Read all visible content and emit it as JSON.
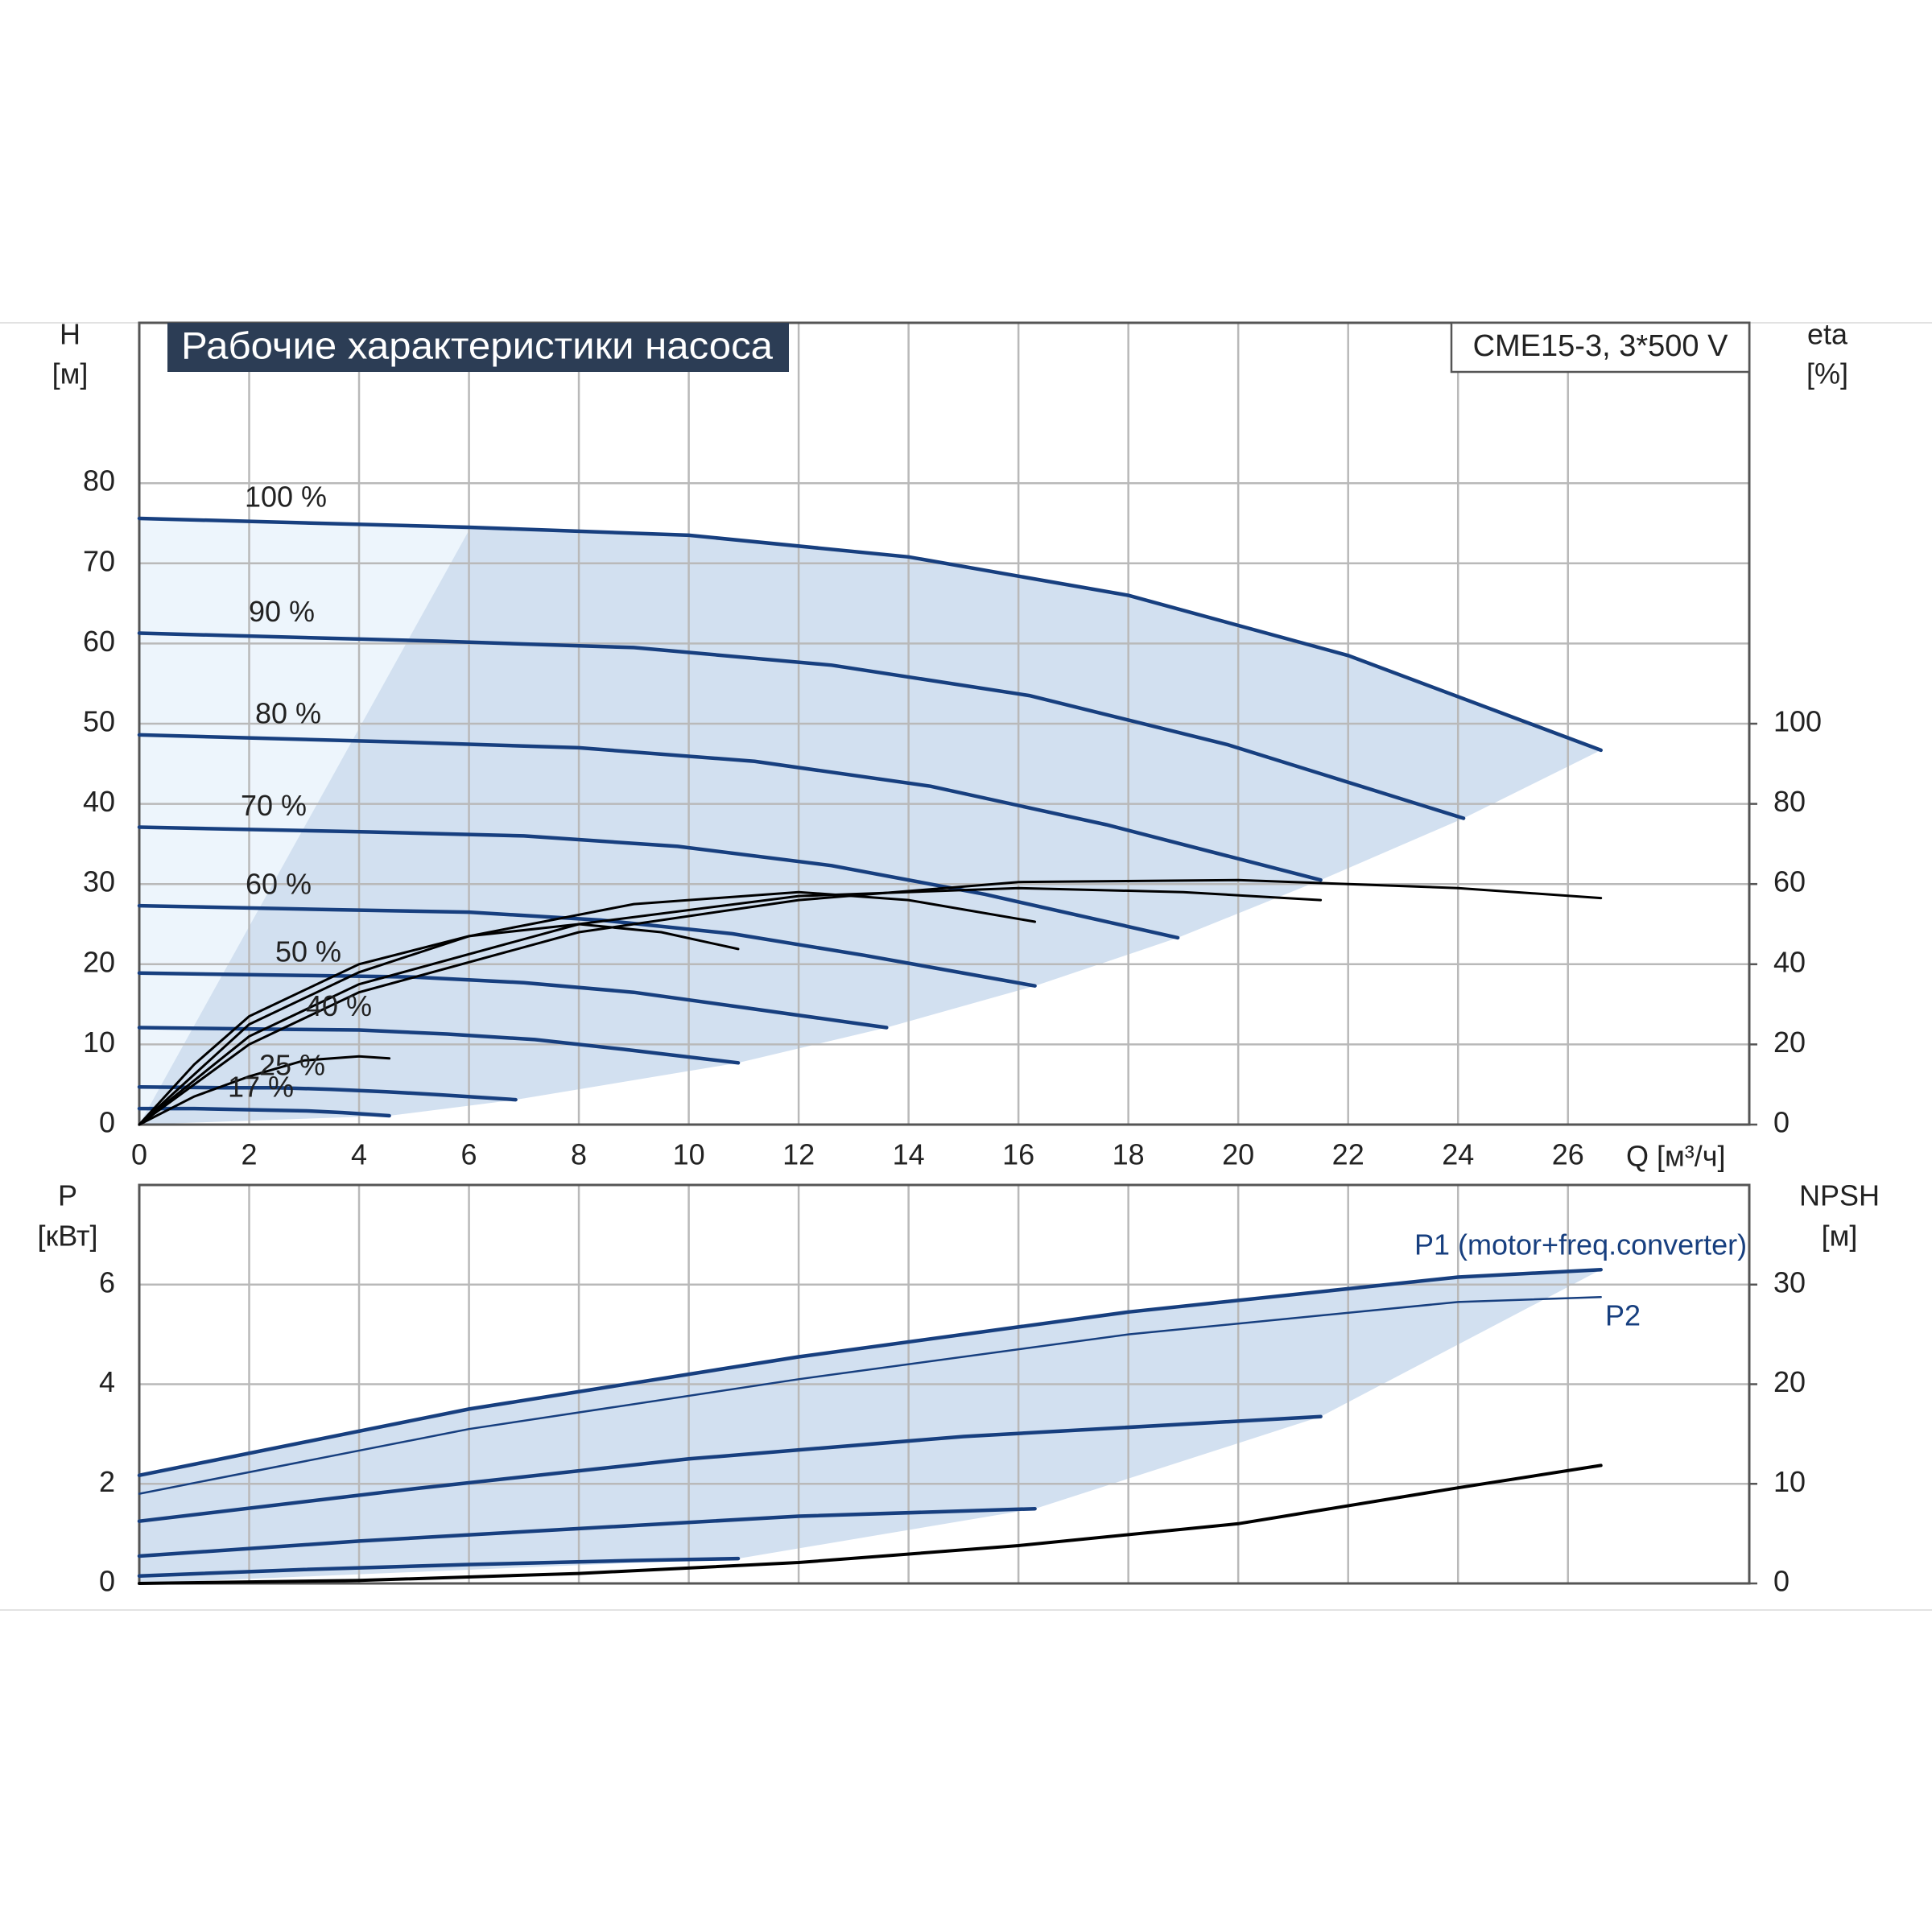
{
  "chart_data": [
    {
      "type": "line",
      "title": "Рабочие характеристики насоса",
      "annotation": "CME15-3, 3*500 V",
      "xlabel": "Q [м³/ч]",
      "ylabel": "H",
      "ylabel_unit": "[м]",
      "y2label": "eta",
      "y2label_unit": "[%]",
      "xlim": [
        0,
        29.3
      ],
      "xticks": [
        0,
        2,
        4,
        6,
        8,
        10,
        12,
        14,
        16,
        18,
        20,
        22,
        24,
        26
      ],
      "ylim": [
        0,
        100
      ],
      "yticks": [
        0,
        10,
        20,
        30,
        40,
        50,
        60,
        70,
        80
      ],
      "y2lim": [
        0,
        200
      ],
      "y2ticks": [
        0,
        20,
        40,
        60,
        80,
        100
      ],
      "grid": true,
      "series": [
        {
          "name": "100 %",
          "color": "#173f7f",
          "x": [
            0,
            6,
            10,
            14,
            18,
            22,
            26.6
          ],
          "values": [
            75.6,
            74.5,
            73.5,
            70.8,
            66,
            58.5,
            46.7
          ]
        },
        {
          "name": "90 %",
          "color": "#173f7f",
          "x": [
            0,
            5.4,
            9,
            12.6,
            16.2,
            19.8,
            24.1
          ],
          "values": [
            61.3,
            60.3,
            59.5,
            57.3,
            53.5,
            47.4,
            38.2
          ]
        },
        {
          "name": "80 %",
          "color": "#173f7f",
          "x": [
            0,
            4.8,
            8,
            11.2,
            14.4,
            17.6,
            21.5
          ],
          "values": [
            48.6,
            47.7,
            47,
            45.3,
            42.2,
            37.4,
            30.5
          ]
        },
        {
          "name": "70 %",
          "color": "#173f7f",
          "x": [
            0,
            4.2,
            7,
            9.8,
            12.6,
            15.4,
            18.9
          ],
          "values": [
            37.1,
            36.5,
            36,
            34.7,
            32.3,
            28.7,
            23.3
          ]
        },
        {
          "name": "60 %",
          "color": "#173f7f",
          "x": [
            0,
            3.6,
            6,
            8.4,
            10.8,
            13.2,
            16.3
          ],
          "values": [
            27.3,
            26.8,
            26.5,
            25.5,
            23.8,
            21.1,
            17.3
          ]
        },
        {
          "name": "50 %",
          "color": "#173f7f",
          "x": [
            0,
            3,
            5,
            7,
            9,
            11,
            13.6
          ],
          "values": [
            18.9,
            18.6,
            18.4,
            17.7,
            16.5,
            14.6,
            12.1
          ]
        },
        {
          "name": "40 %",
          "color": "#173f7f",
          "x": [
            0,
            2.4,
            4,
            5.6,
            7.2,
            8.8,
            10.9
          ],
          "values": [
            12.1,
            11.9,
            11.8,
            11.3,
            10.6,
            9.4,
            7.7
          ]
        },
        {
          "name": "25 %",
          "color": "#173f7f",
          "x": [
            0,
            1.5,
            2.5,
            3.5,
            4.5,
            5.5,
            6.85
          ],
          "values": [
            4.7,
            4.6,
            4.6,
            4.4,
            4.1,
            3.7,
            3.1
          ]
        },
        {
          "name": "17 %",
          "color": "#173f7f",
          "x": [
            0,
            1,
            1.7,
            2.4,
            3.1,
            3.7,
            4.55
          ],
          "values": [
            2.0,
            2.0,
            1.9,
            1.8,
            1.7,
            1.5,
            1.1
          ]
        },
        {
          "color": "#000000",
          "axis": "y2",
          "x": [
            0,
            2,
            4,
            8,
            12,
            16,
            20,
            24,
            26.6
          ],
          "values": [
            0,
            20,
            33,
            48,
            56,
            60.5,
            61,
            59,
            56.5
          ]
        },
        {
          "color": "#000000",
          "axis": "y2",
          "x": [
            0,
            2,
            4,
            8,
            12,
            16,
            19,
            21.5
          ],
          "values": [
            0,
            22,
            35,
            50,
            57,
            59,
            58,
            56
          ]
        },
        {
          "color": "#000000",
          "axis": "y2",
          "x": [
            0,
            2,
            4,
            6,
            9,
            12,
            14,
            16.3
          ],
          "values": [
            0,
            25,
            38,
            47,
            55,
            58,
            56,
            50.6
          ]
        },
        {
          "color": "#000000",
          "axis": "y2",
          "x": [
            0,
            1,
            2,
            4,
            6,
            8,
            9.5,
            10.9
          ],
          "values": [
            0,
            15,
            27,
            40,
            47,
            50,
            48,
            43.8
          ]
        },
        {
          "color": "#000000",
          "axis": "y2",
          "x": [
            0,
            1,
            2,
            3,
            4,
            4.55
          ],
          "values": [
            0,
            7,
            12,
            16,
            17,
            16.5
          ]
        }
      ]
    },
    {
      "type": "line",
      "ylabel": "P",
      "ylabel_unit": "[кВт]",
      "y2label": "NPSH",
      "y2label_unit": "[м]",
      "xlim": [
        0,
        29.3
      ],
      "ylim": [
        0,
        8
      ],
      "yticks": [
        0,
        2,
        4,
        6
      ],
      "y2lim": [
        0,
        40
      ],
      "y2ticks": [
        0,
        10,
        20,
        30
      ],
      "grid": true,
      "series": [
        {
          "name": "P1 (motor+freq.converter)",
          "color": "#173f7f",
          "x": [
            0,
            6,
            12,
            18,
            24,
            26.6
          ],
          "values": [
            2.17,
            3.5,
            4.55,
            5.45,
            6.15,
            6.3
          ]
        },
        {
          "name": "P2",
          "color": "#173f7f",
          "x": [
            0,
            6,
            12,
            18,
            24,
            26.6
          ],
          "values": [
            1.8,
            3.1,
            4.1,
            5.0,
            5.65,
            5.75
          ]
        },
        {
          "color": "#173f7f",
          "x": [
            0,
            5,
            10,
            15,
            21.5
          ],
          "values": [
            1.25,
            1.9,
            2.5,
            2.95,
            3.35
          ]
        },
        {
          "color": "#173f7f",
          "x": [
            0,
            4,
            8,
            12,
            16.3
          ],
          "values": [
            0.55,
            0.85,
            1.1,
            1.35,
            1.5
          ]
        },
        {
          "color": "#173f7f",
          "x": [
            0,
            3,
            6,
            9,
            10.9
          ],
          "values": [
            0.15,
            0.28,
            0.38,
            0.46,
            0.5
          ]
        },
        {
          "color": "#000000",
          "axis": "y2",
          "x": [
            0,
            4,
            8,
            12,
            16,
            20,
            24,
            26.6
          ],
          "values": [
            0,
            0.3,
            1.0,
            2.1,
            3.8,
            6.0,
            9.6,
            11.85
          ]
        }
      ]
    }
  ]
}
